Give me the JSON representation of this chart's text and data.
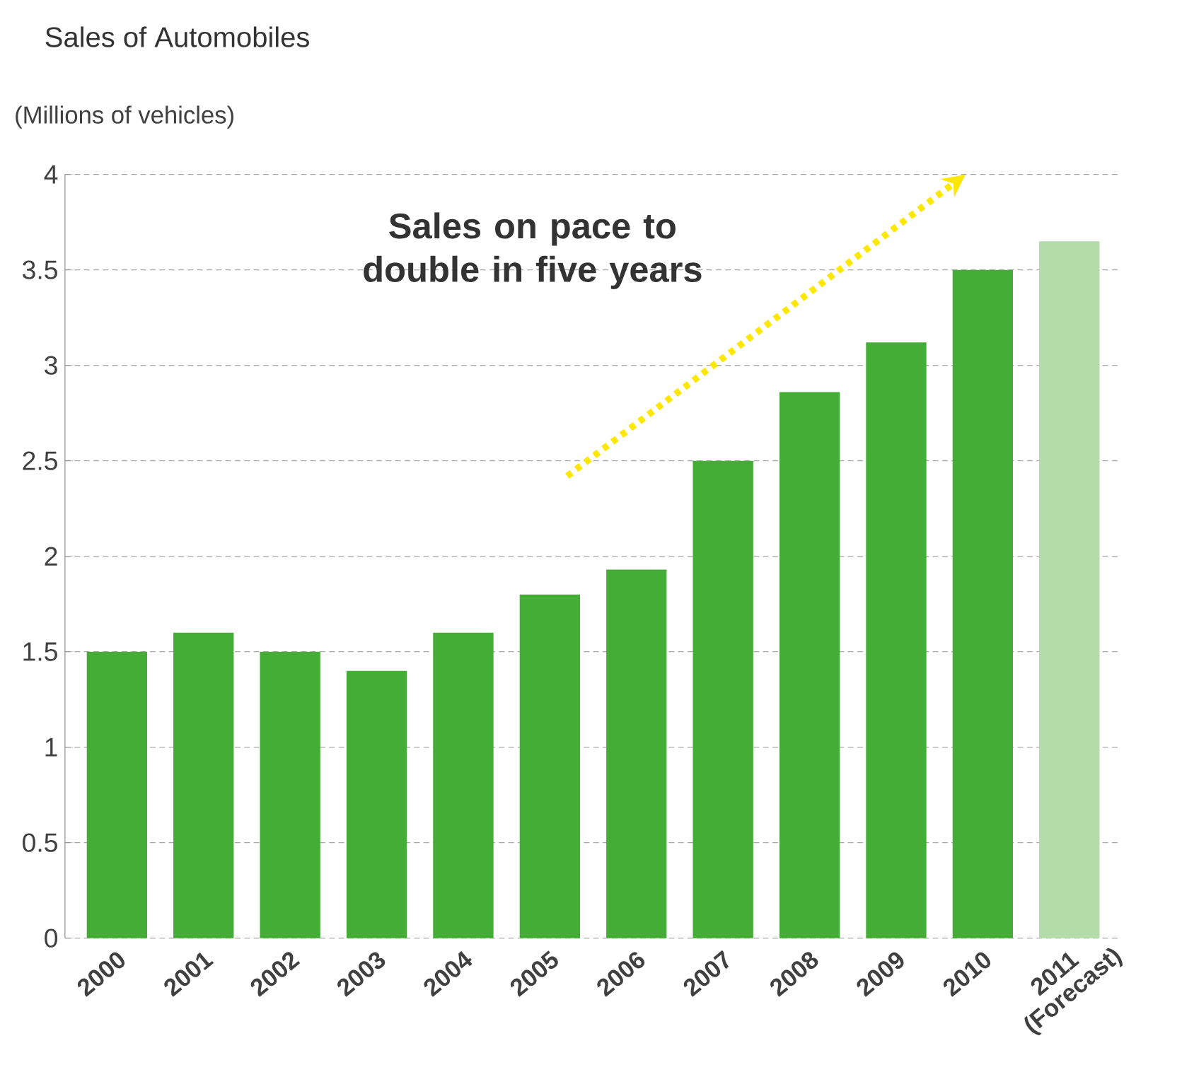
{
  "chart_data": {
    "type": "bar",
    "title": "Sales of Automobiles",
    "ylabel": "(Millions of vehicles)",
    "categories": [
      "2000",
      "2001",
      "2002",
      "2003",
      "2004",
      "2005",
      "2006",
      "2007",
      "2008",
      "2009",
      "2010",
      "2011 (Forecast)"
    ],
    "values": [
      1.5,
      1.6,
      1.5,
      1.4,
      1.6,
      1.8,
      1.93,
      2.5,
      2.86,
      3.12,
      3.5,
      3.65
    ],
    "colors": [
      "#44ad35",
      "#44ad35",
      "#44ad35",
      "#44ad35",
      "#44ad35",
      "#44ad35",
      "#44ad35",
      "#44ad35",
      "#44ad35",
      "#44ad35",
      "#44ad35",
      "#b3dca8"
    ],
    "ylim": [
      0,
      4
    ],
    "yticks": [
      0,
      0.5,
      1,
      1.5,
      2,
      2.5,
      3,
      3.5,
      4
    ],
    "grid": "y",
    "annotations": [
      "Sales on pace to double in five years"
    ]
  }
}
